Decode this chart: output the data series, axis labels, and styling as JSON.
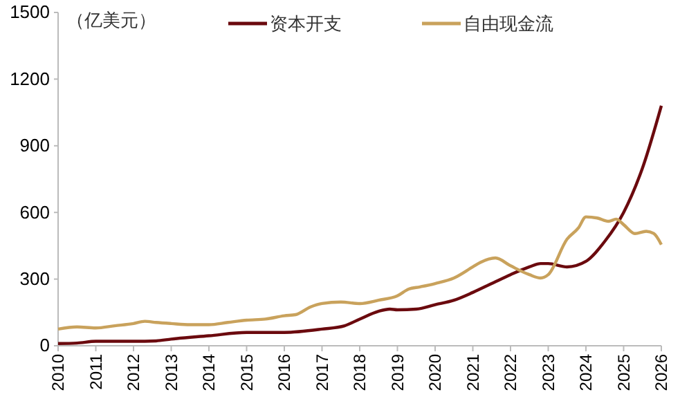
{
  "chart_data": {
    "type": "line",
    "ylabel": "（亿美元）",
    "xlim": [
      2010,
      2026
    ],
    "xticks": [
      2010,
      2011,
      2012,
      2013,
      2014,
      2015,
      2016,
      2017,
      2018,
      2019,
      2020,
      2021,
      2022,
      2023,
      2024,
      2025,
      2026
    ],
    "ylim": [
      0,
      1500
    ],
    "yticks": [
      0,
      300,
      600,
      900,
      1200,
      1500
    ],
    "legend": "top",
    "grid": false,
    "series": [
      {
        "name": "资本开支",
        "color": "#6b0a0e",
        "x": [
          2010,
          2010.5,
          2011,
          2012,
          2012.6,
          2013,
          2014,
          2015,
          2016,
          2017,
          2017.6,
          2018,
          2018.5,
          2018.8,
          2019,
          2019.5,
          2020,
          2020.5,
          2021,
          2021.5,
          2022,
          2022.5,
          2022.8,
          2023,
          2023.5,
          2024,
          2024.5,
          2025,
          2025.5,
          2026
        ],
        "values": [
          10,
          12,
          20,
          20,
          22,
          30,
          45,
          60,
          60,
          75,
          90,
          120,
          155,
          165,
          162,
          165,
          185,
          205,
          240,
          280,
          320,
          355,
          370,
          370,
          355,
          380,
          470,
          600,
          800,
          1080
        ]
      },
      {
        "name": "自由现金流",
        "color": "#c9a25c",
        "x": [
          2010,
          2010.5,
          2011,
          2011.5,
          2012,
          2012.3,
          2012.6,
          2013,
          2013.5,
          2014,
          2014.5,
          2015,
          2015.5,
          2016,
          2016.3,
          2016.7,
          2017,
          2017.5,
          2018,
          2018.5,
          2019,
          2019.3,
          2019.6,
          2020,
          2020.5,
          2021,
          2021.2,
          2021.6,
          2022,
          2022.5,
          2022.8,
          2023,
          2023.5,
          2023.8,
          2024,
          2024.3,
          2024.6,
          2024.8,
          2025,
          2025.3,
          2025.6,
          2025.8,
          2026
        ],
        "values": [
          75,
          85,
          80,
          90,
          100,
          110,
          105,
          100,
          95,
          95,
          105,
          115,
          120,
          135,
          140,
          175,
          190,
          197,
          190,
          205,
          225,
          255,
          265,
          280,
          305,
          355,
          375,
          395,
          360,
          320,
          305,
          320,
          480,
          530,
          580,
          575,
          560,
          570,
          545,
          505,
          515,
          505,
          455
        ]
      }
    ]
  }
}
